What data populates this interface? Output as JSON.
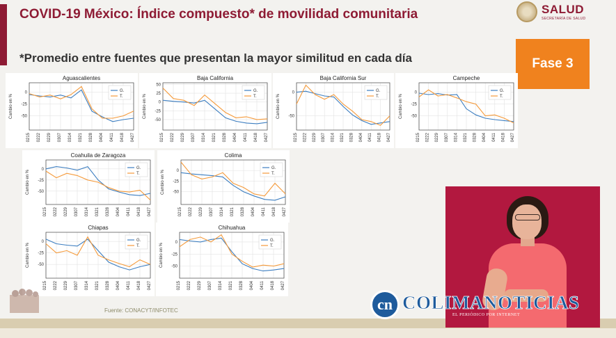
{
  "header": {
    "title": "COVID-19 México: Índice compuesto* de movilidad comunitaria",
    "subtitle": "*Promedio entre fuentes que presentan la mayor similitud en cada día",
    "logo_text": "SALUD",
    "logo_sub": "SECRETARÍA DE SALUD",
    "badge": "Fase 3"
  },
  "footer": {
    "source": "Fuente: CONACYT/INFOTEC"
  },
  "watermark": {
    "initials": "cn",
    "name": "COLIMANOTICIAS",
    "tagline": "EL PERIÓDICO POR INTERNET"
  },
  "colors": {
    "google": "#3b7dc0",
    "twitter": "#f59a3a",
    "brand": "#8e1b34",
    "badge": "#f0821e"
  },
  "chart_data": [
    {
      "type": "line",
      "title": "Aguascalientes",
      "ylabel": "Cambio en %",
      "x": [
        "0215",
        "0222",
        "0229",
        "0307",
        "0314",
        "0321",
        "0328",
        "0404",
        "0411",
        "0418",
        "0427"
      ],
      "ylim": [
        -80,
        20
      ],
      "yticks": [
        0,
        -25,
        -50
      ],
      "series": [
        {
          "name": "G.",
          "values": [
            -5,
            -8,
            -10,
            -6,
            -12,
            5,
            -40,
            -52,
            -62,
            -58,
            -55
          ]
        },
        {
          "name": "T.",
          "values": [
            -3,
            -10,
            -6,
            -14,
            -5,
            12,
            -35,
            -55,
            -55,
            -50,
            -40
          ]
        }
      ]
    },
    {
      "type": "line",
      "title": "Baja California",
      "ylabel": "Cambio en %",
      "x": [
        "0215",
        "0222",
        "0229",
        "0307",
        "0314",
        "0321",
        "0328",
        "0404",
        "0411",
        "0418",
        "0427"
      ],
      "ylim": [
        -80,
        55
      ],
      "yticks": [
        50,
        25,
        0,
        -25,
        -50
      ],
      "series": [
        {
          "name": "G.",
          "values": [
            5,
            2,
            0,
            -3,
            5,
            -20,
            -45,
            -55,
            -60,
            -62,
            -58
          ]
        },
        {
          "name": "T.",
          "values": [
            40,
            10,
            5,
            -10,
            20,
            -5,
            -30,
            -45,
            -42,
            -50,
            -48
          ]
        }
      ]
    },
    {
      "type": "line",
      "title": "Baja California Sur",
      "ylabel": "Cambio en %",
      "x": [
        "0215",
        "0222",
        "0229",
        "0307",
        "0314",
        "0321",
        "0328",
        "0404",
        "0411",
        "0418",
        "0427"
      ],
      "ylim": [
        -80,
        20
      ],
      "yticks": [
        0,
        -50
      ],
      "series": [
        {
          "name": "G.",
          "values": [
            0,
            2,
            -3,
            -8,
            -10,
            -30,
            -48,
            -60,
            -68,
            -65,
            -62
          ]
        },
        {
          "name": "T.",
          "values": [
            -25,
            15,
            -5,
            -15,
            -5,
            -25,
            -40,
            -58,
            -62,
            -70,
            -50
          ]
        }
      ]
    },
    {
      "type": "line",
      "title": "Campeche",
      "ylabel": "Cambio en %",
      "x": [
        "0215",
        "0222",
        "0229",
        "0307",
        "0314",
        "0321",
        "0328",
        "0404",
        "0411",
        "0418",
        "0427"
      ],
      "ylim": [
        -80,
        20
      ],
      "yticks": [
        0,
        -25,
        -50
      ],
      "series": [
        {
          "name": "G.",
          "values": [
            -2,
            -5,
            -3,
            -6,
            -5,
            -35,
            -48,
            -55,
            -58,
            -60,
            -62
          ]
        },
        {
          "name": "T.",
          "values": [
            -10,
            5,
            -8,
            -5,
            -12,
            -20,
            -25,
            -50,
            -48,
            -55,
            -65
          ]
        }
      ]
    },
    {
      "type": "line",
      "title": "Coahuila de Zaragoza",
      "ylabel": "Cambio en %",
      "x": [
        "0215",
        "0222",
        "0229",
        "0307",
        "0314",
        "0321",
        "0328",
        "0404",
        "0411",
        "0418",
        "0427"
      ],
      "ylim": [
        -80,
        20
      ],
      "yticks": [
        0,
        -25,
        -50
      ],
      "series": [
        {
          "name": "G.",
          "values": [
            0,
            5,
            2,
            -3,
            5,
            -25,
            -45,
            -52,
            -58,
            -60,
            -55
          ]
        },
        {
          "name": "T.",
          "values": [
            -5,
            -20,
            -10,
            -15,
            -25,
            -30,
            -42,
            -50,
            -52,
            -48,
            -70
          ]
        }
      ]
    },
    {
      "type": "line",
      "title": "Colima",
      "ylabel": "Cambio en %",
      "x": [
        "0215",
        "0222",
        "0229",
        "0307",
        "0314",
        "0321",
        "0328",
        "0404",
        "0411",
        "0418",
        "0427"
      ],
      "ylim": [
        -80,
        25
      ],
      "yticks": [
        0,
        -25,
        -50
      ],
      "series": [
        {
          "name": "G.",
          "values": [
            -5,
            -8,
            -10,
            -12,
            -15,
            -35,
            -50,
            -60,
            -68,
            -70,
            -62
          ]
        },
        {
          "name": "T.",
          "values": [
            20,
            -10,
            -20,
            -15,
            -5,
            -30,
            -40,
            -55,
            -60,
            -30,
            -55
          ]
        }
      ]
    },
    {
      "type": "line",
      "title": "Chiapas",
      "ylabel": "Cambio en %",
      "x": [
        "0215",
        "0222",
        "0229",
        "0307",
        "0314",
        "0321",
        "0328",
        "0404",
        "0411",
        "0418",
        "0427"
      ],
      "ylim": [
        -80,
        20
      ],
      "yticks": [
        0,
        -25,
        -50
      ],
      "series": [
        {
          "name": "G.",
          "values": [
            5,
            -5,
            -8,
            -10,
            5,
            -20,
            -45,
            -55,
            -62,
            -55,
            -50
          ]
        },
        {
          "name": "T.",
          "values": [
            -5,
            -25,
            -20,
            -30,
            10,
            -30,
            -40,
            -48,
            -55,
            -40,
            -50
          ]
        }
      ]
    },
    {
      "type": "line",
      "title": "Chihuahua",
      "ylabel": "Cambio en %",
      "x": [
        "0215",
        "0222",
        "0229",
        "0307",
        "0314",
        "0321",
        "0328",
        "0404",
        "0411",
        "0418",
        "0427"
      ],
      "ylim": [
        -75,
        20
      ],
      "yticks": [
        0,
        -25,
        -50
      ],
      "series": [
        {
          "name": "G.",
          "values": [
            5,
            2,
            0,
            5,
            8,
            -20,
            -45,
            -55,
            -60,
            -58,
            -55
          ]
        },
        {
          "name": "T.",
          "values": [
            -10,
            5,
            10,
            0,
            15,
            -25,
            -40,
            -52,
            -48,
            -50,
            -45
          ]
        }
      ]
    }
  ]
}
